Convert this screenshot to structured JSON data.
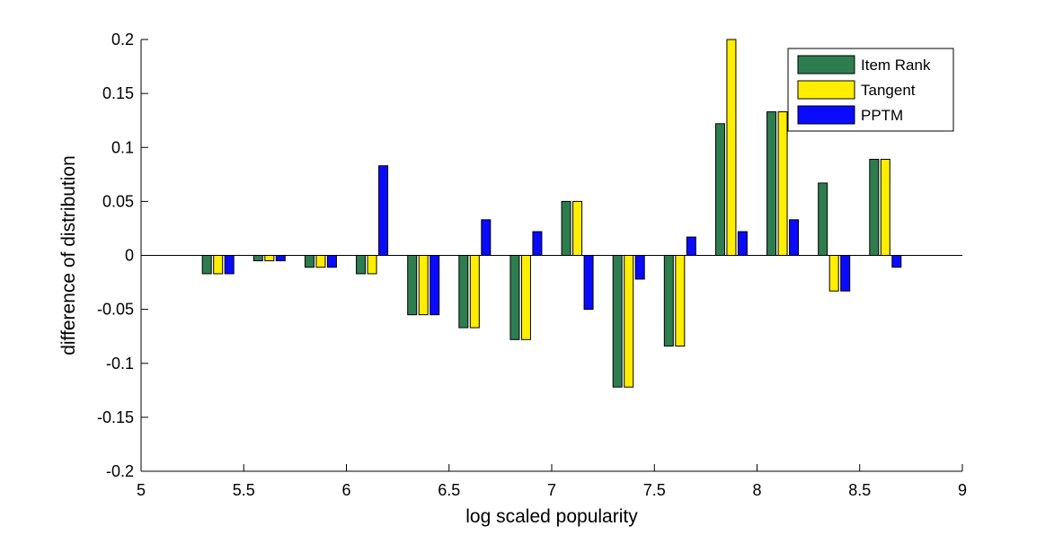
{
  "chart_data": {
    "type": "bar",
    "title": "",
    "xlabel": "log scaled popularity",
    "ylabel": "difference of distribution",
    "xlim": [
      5,
      9
    ],
    "ylim": [
      -0.2,
      0.2
    ],
    "x_ticks": [
      "5",
      "5.5",
      "6",
      "6.5",
      "7",
      "7.5",
      "8",
      "8.5",
      "9"
    ],
    "y_ticks": [
      "-0.2",
      "-0.15",
      "-0.1",
      "-0.05",
      "0",
      "0.05",
      "0.1",
      "0.15",
      "0.2"
    ],
    "grid": false,
    "legend_position": "top-right",
    "x": [
      5.375,
      5.625,
      5.875,
      6.125,
      6.375,
      6.625,
      6.875,
      7.125,
      7.375,
      7.625,
      7.875,
      8.125,
      8.375,
      8.625
    ],
    "series": [
      {
        "name": "Item Rank",
        "color": "#2e7d4f",
        "values": [
          -0.017,
          -0.005,
          -0.011,
          -0.017,
          -0.055,
          -0.067,
          -0.078,
          0.05,
          -0.122,
          -0.084,
          0.122,
          0.133,
          0.067,
          0.089
        ]
      },
      {
        "name": "Tangent",
        "color": "#ffee00",
        "values": [
          -0.017,
          -0.005,
          -0.011,
          -0.017,
          -0.055,
          -0.067,
          -0.078,
          0.05,
          -0.122,
          -0.084,
          0.2,
          0.133,
          -0.033,
          0.089
        ]
      },
      {
        "name": "PPTM",
        "color": "#0a0aff",
        "values": [
          -0.017,
          -0.005,
          -0.011,
          0.083,
          -0.055,
          0.033,
          0.022,
          -0.05,
          -0.022,
          0.017,
          0.022,
          0.033,
          -0.033,
          -0.011
        ]
      }
    ]
  }
}
